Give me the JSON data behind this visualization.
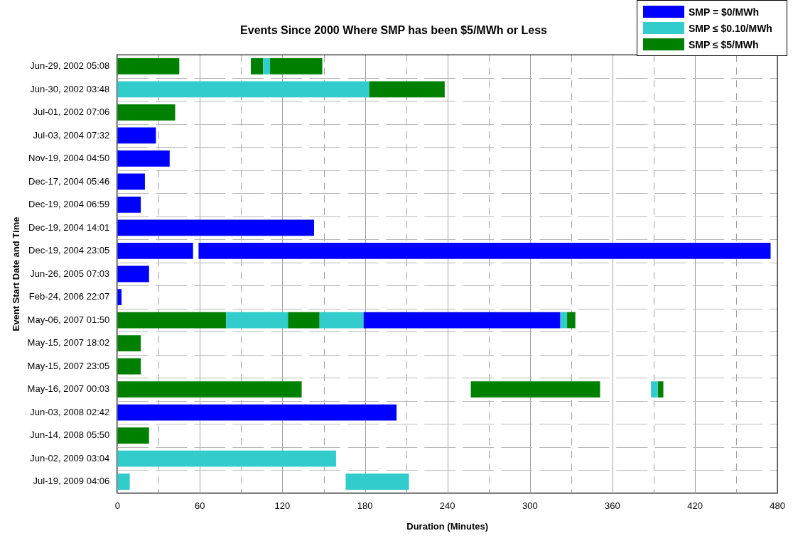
{
  "chart_data": {
    "type": "bar",
    "orientation": "horizontal",
    "title": "Events Since 2000 Where SMP has been $5/MWh or Less",
    "xlabel": "Duration (Minutes)",
    "ylabel": "Event Start Date and Time",
    "categories": [
      "Jun-29, 2002 05:08",
      "Jun-30, 2002 03:48",
      "Jul-01, 2002 07:06",
      "Jul-03, 2004 07:32",
      "Nov-19, 2004 04:50",
      "Dec-17, 2004 05:46",
      "Dec-19, 2004 06:59",
      "Dec-19, 2004 14:01",
      "Dec-19, 2004 23:05",
      "Jun-26, 2005 07:03",
      "Feb-24, 2006 22:07",
      "May-06, 2007 01:50",
      "May-15, 2007 18:02",
      "May-15, 2007 23:05",
      "May-16, 2007 00:03",
      "Jun-03, 2008 02:42",
      "Jun-14, 2008 05:50",
      "Jun-02, 2009 03:04",
      "Jul-19, 2009 04:06"
    ],
    "series": [
      {
        "name": "SMP = $0/MWh",
        "color": "#0000ff",
        "values": [
          null,
          null,
          null,
          28,
          38,
          20,
          17,
          143,
          55,
          23,
          3,
          143,
          null,
          null,
          null,
          203,
          null,
          null,
          null
        ],
        "base": [
          null,
          null,
          null,
          0,
          0,
          0,
          0,
          0,
          0,
          0,
          0,
          179,
          null,
          null,
          null,
          0,
          null,
          null,
          null
        ]
      },
      {
        "name": "SMP ≤ $0.10/MWh",
        "color": "#33cccc",
        "values": [
          5,
          183,
          null,
          null,
          null,
          null,
          null,
          null,
          null,
          null,
          null,
          45,
          null,
          null,
          5,
          null,
          null,
          159,
          9
        ],
        "base": [
          106,
          0,
          null,
          null,
          null,
          null,
          null,
          null,
          null,
          null,
          null,
          79,
          null,
          null,
          388,
          null,
          null,
          0,
          0
        ]
      },
      {
        "name": "SMP ≤ $5/MWh",
        "color": "#008000",
        "values": [
          45,
          55,
          42,
          null,
          null,
          null,
          null,
          null,
          null,
          null,
          null,
          79,
          17,
          17,
          134,
          null,
          23,
          null,
          null
        ],
        "base": [
          0,
          183,
          0,
          null,
          null,
          null,
          null,
          null,
          null,
          null,
          null,
          0,
          0,
          0,
          0,
          null,
          0,
          null,
          null
        ]
      },
      {
        "color": "#0000ff",
        "values": [
          null,
          null,
          null,
          null,
          null,
          null,
          null,
          null,
          416,
          null,
          null,
          null,
          null,
          null,
          null,
          null,
          null,
          null,
          null
        ],
        "base": [
          null,
          null,
          null,
          null,
          null,
          null,
          null,
          null,
          59,
          null,
          null,
          null,
          null,
          null,
          null,
          null,
          null,
          null,
          null
        ]
      },
      {
        "color": "#33cccc",
        "values": [
          null,
          null,
          null,
          null,
          null,
          null,
          null,
          null,
          null,
          null,
          null,
          32,
          null,
          null,
          null,
          null,
          null,
          null,
          46
        ],
        "base": [
          null,
          null,
          null,
          null,
          null,
          null,
          null,
          null,
          null,
          null,
          null,
          147,
          null,
          null,
          null,
          null,
          null,
          null,
          166
        ]
      },
      {
        "color": "#33cccc",
        "values": [
          null,
          null,
          null,
          null,
          null,
          null,
          null,
          null,
          null,
          null,
          null,
          5,
          null,
          null,
          null,
          null,
          null,
          null,
          null
        ],
        "base": [
          null,
          null,
          null,
          null,
          null,
          null,
          null,
          null,
          null,
          null,
          null,
          322,
          null,
          null,
          null,
          null,
          null,
          null,
          null
        ]
      },
      {
        "color": "#008000",
        "values": [
          9,
          null,
          null,
          null,
          null,
          null,
          null,
          null,
          null,
          null,
          null,
          23,
          null,
          null,
          94,
          null,
          null,
          null,
          null
        ],
        "base": [
          97,
          null,
          null,
          null,
          null,
          null,
          null,
          null,
          null,
          null,
          null,
          124,
          null,
          null,
          257,
          null,
          null,
          null,
          null
        ]
      },
      {
        "color": "#008000",
        "values": [
          38,
          null,
          null,
          null,
          null,
          null,
          null,
          null,
          null,
          null,
          null,
          6,
          null,
          null,
          4,
          null,
          null,
          null,
          null
        ],
        "base": [
          111,
          null,
          null,
          null,
          null,
          null,
          null,
          null,
          null,
          null,
          null,
          327,
          null,
          null,
          393,
          null,
          null,
          null,
          null
        ]
      }
    ],
    "xlim": [
      0,
      480
    ],
    "xticks": [
      0,
      {
        "value": 30,
        "label": null
      },
      60,
      {
        "value": 90,
        "label": null
      },
      120,
      {
        "value": 150,
        "label": null
      },
      180,
      {
        "value": 210,
        "label": null
      },
      240,
      {
        "value": 270,
        "label": null
      },
      300,
      {
        "value": 330,
        "label": null
      },
      360,
      {
        "value": 390,
        "label": null
      },
      420,
      {
        "value": 450,
        "label": null
      },
      480
    ],
    "grid": true,
    "legend": "top right"
  }
}
